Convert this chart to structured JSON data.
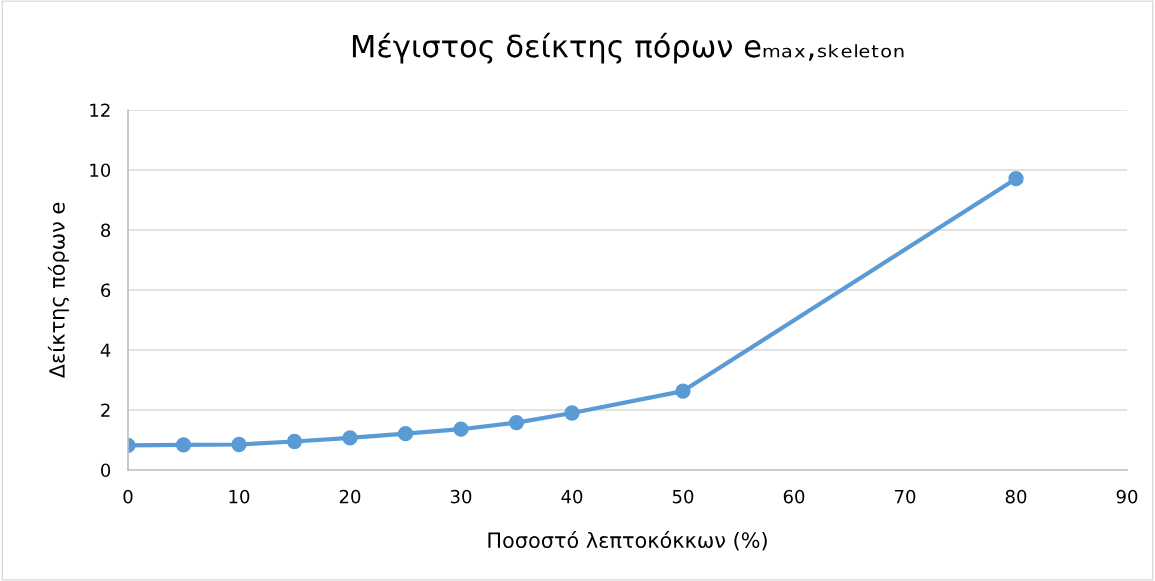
{
  "chart_data": {
    "type": "line",
    "title": "Μέγιστος δείκτης πόρων eₘₐₓ,ₛₖₑₗₑₜₒₙ",
    "xlabel": "Ποσοστό λεπτοκόκκων (%)",
    "ylabel": "Δείκτης πόρων e",
    "x": [
      0,
      5,
      10,
      15,
      20,
      25,
      30,
      35,
      40,
      50,
      80
    ],
    "series": [
      {
        "color": "#5b9bd5",
        "values": [
          0.82,
          0.84,
          0.85,
          0.95,
          1.07,
          1.21,
          1.36,
          1.58,
          1.9,
          2.63,
          9.71
        ]
      }
    ],
    "xlim": [
      0,
      90
    ],
    "xticks": [
      0,
      10,
      20,
      30,
      40,
      50,
      60,
      70,
      80,
      90
    ],
    "ylim": [
      0,
      12
    ],
    "yticks": [
      0,
      2,
      4,
      6,
      8,
      10,
      12
    ],
    "grid": "y",
    "legend": false,
    "marker": "circle",
    "line_style": "solid"
  }
}
